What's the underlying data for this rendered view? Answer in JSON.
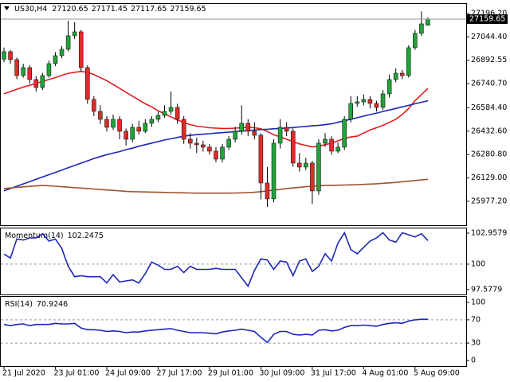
{
  "chart_data": [
    {
      "type": "candlestick",
      "symbol": "US30,H4",
      "categories": [
        "21 Jul 2020",
        null,
        null,
        null,
        null,
        null,
        null,
        null,
        "23 Jul 01:00",
        null,
        null,
        null,
        null,
        null,
        null,
        null,
        "24 Jul 09:00",
        null,
        null,
        null,
        null,
        null,
        null,
        null,
        "27 Jul 17:00",
        null,
        null,
        null,
        null,
        null,
        null,
        null,
        "29 Jul 01:00",
        null,
        null,
        null,
        null,
        null,
        null,
        null,
        "30 Jul 09:00",
        null,
        null,
        null,
        null,
        null,
        null,
        null,
        "31 Jul 17:00",
        null,
        null,
        null,
        null,
        null,
        null,
        null,
        "4 Aug 01:00",
        null,
        null,
        null,
        null,
        null,
        null,
        null,
        "5 Aug 09:00",
        null,
        null
      ],
      "open": [
        26900.0,
        26948.3,
        26896.6,
        26793.3,
        26845.0,
        26767.5,
        26715.9,
        26793.3,
        26870.8,
        26922.5,
        26963.8,
        27051.6,
        27077.4,
        26845.0,
        26638.4,
        26560.9,
        26509.3,
        26457.6,
        26509.3,
        26431.8,
        26380.1,
        26457.6,
        26431.8,
        26483.4,
        26509.3,
        26535.1,
        26560.9,
        26586.7,
        26509.3,
        26380.1,
        26354.3,
        26344.0,
        26328.5,
        26302.7,
        26251.0,
        26328.5,
        26380.1,
        26431.8,
        26483.4,
        26431.8,
        26406.0,
        26096.1,
        25992.8,
        26354.3,
        26457.6,
        26431.8,
        26225.2,
        26199.4,
        26225.2,
        26044.4,
        26354.3,
        26380.1,
        26302.7,
        26328.5,
        26509.3,
        26612.6,
        26622.9,
        26638.4,
        26612.6,
        26586.7,
        26674.5,
        26767.5,
        26808.8,
        26793.3,
        26974.1,
        27067.1,
        27120.65
      ],
      "high": [
        26975.0,
        26960.0,
        26910.0,
        26870.0,
        26860.0,
        26790.0,
        26810.0,
        26890.0,
        26945.0,
        26985.0,
        27150.0,
        27140.0,
        27090.0,
        26860.0,
        26660.0,
        26600.0,
        26530.0,
        26540.0,
        26530.0,
        26450.0,
        26480.0,
        26500.0,
        26510.0,
        26530.0,
        26560.0,
        26600.0,
        26690.0,
        26610.0,
        26530.0,
        26420.0,
        26390.0,
        26370.0,
        26350.0,
        26330.0,
        26350.0,
        26400.0,
        26460.0,
        26600.0,
        26510.0,
        26490.0,
        26420.0,
        26200.0,
        26380.0,
        26510.0,
        26490.0,
        26450.0,
        26290.0,
        26260.0,
        26240.0,
        26380.0,
        26420.0,
        26400.0,
        26360.0,
        26530.0,
        26660.0,
        26660.0,
        26670.0,
        26660.0,
        26630.0,
        26700.0,
        26800.0,
        26840.0,
        26830.0,
        26990.0,
        27090.0,
        27210.0,
        27171.45
      ],
      "low": [
        26880.0,
        26870.0,
        26770.0,
        26780.0,
        26740.0,
        26690.0,
        26700.0,
        26780.0,
        26855.0,
        26905.0,
        26950.0,
        27030.0,
        26820.0,
        26610.0,
        26530.0,
        26480.0,
        26430.0,
        26440.0,
        26380.0,
        26340.0,
        26360.0,
        26410.0,
        26420.0,
        26460.0,
        26490.0,
        26520.0,
        26540.0,
        26480.0,
        26350.0,
        26320.0,
        26290.0,
        26300.0,
        26280.0,
        26230.0,
        26230.0,
        26310.0,
        26360.0,
        26410.0,
        26400.0,
        26380.0,
        25990.0,
        25940.0,
        25970.0,
        26320.0,
        26400.0,
        26200.0,
        26170.0,
        26180.0,
        25960.0,
        26020.0,
        26330.0,
        26280.0,
        26290.0,
        26310.0,
        26490.0,
        26590.0,
        26600.0,
        26580.0,
        26560.0,
        26570.0,
        26650.0,
        26750.0,
        26770.0,
        26780.0,
        26960.0,
        27050.0,
        27117.65
      ],
      "close": [
        26948.3,
        26896.6,
        26793.3,
        26845.0,
        26767.5,
        26715.9,
        26793.3,
        26870.8,
        26922.5,
        26963.8,
        27051.6,
        27077.4,
        26845.0,
        26638.4,
        26560.9,
        26509.3,
        26457.6,
        26509.3,
        26431.8,
        26380.1,
        26457.6,
        26431.8,
        26483.4,
        26509.3,
        26535.1,
        26560.9,
        26586.7,
        26509.3,
        26380.1,
        26354.3,
        26344.0,
        26328.5,
        26302.7,
        26251.0,
        26328.5,
        26380.1,
        26431.8,
        26483.4,
        26431.8,
        26406.0,
        26096.1,
        25992.8,
        26354.3,
        26457.6,
        26431.8,
        26225.2,
        26199.4,
        26225.2,
        26044.4,
        26354.3,
        26380.1,
        26302.7,
        26328.5,
        26509.3,
        26612.6,
        26622.9,
        26638.4,
        26612.6,
        26586.7,
        26674.5,
        26767.5,
        26808.8,
        26793.3,
        26974.1,
        27067.1,
        27129.1,
        27159.65
      ],
      "colors": {
        "up": "#22a33a",
        "down": "#e02b2b",
        "wick": "#000000",
        "bid_line": "#9a9a9a"
      },
      "lines": [
        {
          "color": "#e01e1e",
          "values": [
            26675,
            26690,
            26705,
            26718,
            26730,
            26742,
            26755,
            26768,
            26780,
            26795,
            26808,
            26815,
            26820,
            26815,
            26800,
            26780,
            26760,
            26735,
            26710,
            26685,
            26660,
            26635,
            26610,
            26590,
            26565,
            26545,
            26525,
            26505,
            26490,
            26475,
            26465,
            26460,
            26455,
            26452,
            26450,
            26450,
            26452,
            26455,
            26458,
            26455,
            26448,
            26430,
            26410,
            26395,
            26380,
            26365,
            26350,
            26340,
            26330,
            26335,
            26345,
            26355,
            26370,
            26385,
            26395,
            26400,
            26420,
            26440,
            26455,
            26470,
            26490,
            26510,
            26540,
            26580,
            26630,
            26670,
            26710
          ]
        },
        {
          "color": "#1c27b8",
          "values": [
            26045,
            26060,
            26075,
            26090,
            26105,
            26120,
            26135,
            26150,
            26165,
            26180,
            26195,
            26210,
            26225,
            26240,
            26255,
            26268,
            26280,
            26290,
            26300,
            26312,
            26322,
            26335,
            26345,
            26355,
            26365,
            26375,
            26383,
            26392,
            26400,
            26405,
            26410,
            26413,
            26416,
            26420,
            26423,
            26426,
            26430,
            26433,
            26436,
            26440,
            26443,
            26445,
            26448,
            26450,
            26453,
            26456,
            26460,
            26463,
            26467,
            26470,
            26475,
            26480,
            26490,
            26500,
            26510,
            26520,
            26530,
            26540,
            26550,
            26560,
            26570,
            26580,
            26590,
            26600,
            26610,
            26620,
            26630
          ]
        },
        {
          "color": "#a0522d",
          "values": [
            26060,
            26064,
            26068,
            26071,
            26074,
            26077,
            26080,
            26078,
            26075,
            26072,
            26069,
            26066,
            26063,
            26060,
            26057,
            26054,
            26051,
            26048,
            26045,
            26042,
            26040,
            26039,
            26038,
            26037,
            26036,
            26035,
            26034,
            26033,
            26032,
            26031,
            26030,
            26030,
            26030,
            26030,
            26030,
            26030,
            26031,
            26032,
            26034,
            26036,
            26040,
            26045,
            26050,
            26055,
            26060,
            26064,
            26068,
            26072,
            26075,
            26078,
            26080,
            26081,
            26082,
            26083,
            26084,
            26085,
            26087,
            26089,
            26091,
            26094,
            26097,
            26100,
            26104,
            26108,
            26112,
            26116,
            26120
          ]
        }
      ],
      "ylim": [
        25822,
        27258
      ],
      "yticks": [
        {
          "value": 27196.2,
          "label": "27196.20"
        },
        {
          "value": 27044.4,
          "label": "27044.40"
        },
        26892.55,
        {
          "value": 26740.7,
          "label": "26740.70"
        },
        {
          "value": 26584.4,
          "label": "26584.40"
        },
        {
          "value": 26432.6,
          "label": "26432.60"
        },
        {
          "value": 26280.8,
          "label": "26280.80"
        },
        {
          "value": 26129.0,
          "label": "26129.00"
        },
        {
          "value": 25977.2,
          "label": "25977.20"
        }
      ]
    },
    {
      "type": "line",
      "title": "Momentum(14)",
      "color": "#1c27b8",
      "values": [
        100.96,
        100.59,
        102.4,
        102.3,
        102.5,
        102.5,
        102.9,
        102.2,
        102.4,
        101.5,
        99.8,
        98.8,
        98.9,
        98.8,
        98.8,
        98.8,
        98.2,
        99.0,
        98.3,
        98.4,
        98.5,
        98.2,
        99.1,
        100.2,
        99.9,
        99.5,
        99.5,
        99.8,
        99.2,
        99.8,
        99.5,
        99.5,
        99.5,
        99.6,
        99.5,
        99.5,
        99.5,
        98.7,
        97.9,
        99.4,
        100.5,
        100.4,
        99.5,
        100.3,
        100.2,
        98.9,
        100.3,
        100.5,
        99.3,
        99.8,
        101.0,
        100.3,
        102.0,
        103.0,
        101.4,
        101.0,
        101.6,
        102.2,
        102.5,
        103.0,
        102.3,
        102.1,
        103.0,
        102.8,
        102.6,
        102.9,
        102.2475
      ],
      "ylim": [
        97.11,
        103.41
      ],
      "yticks": [
        102.9579,
        100,
        97.5779
      ],
      "levels": [
        100
      ]
    },
    {
      "type": "line",
      "title": "RSI(14)",
      "color": "#1c27b8",
      "values": [
        62,
        60,
        62,
        63,
        60,
        62,
        62,
        62,
        64,
        63,
        63,
        64,
        56,
        53,
        53,
        52,
        50,
        51,
        50,
        48,
        49,
        49,
        51,
        52,
        53,
        54,
        55,
        52,
        50,
        48,
        48,
        48,
        47,
        46,
        49,
        51,
        52,
        54,
        52,
        50,
        40,
        31,
        45,
        50,
        50,
        45,
        44,
        45,
        44,
        52,
        53,
        51,
        52,
        57,
        60,
        60,
        61,
        60,
        59,
        62,
        64,
        65,
        64,
        68,
        70,
        71,
        70.9246
      ],
      "ylim": [
        -9.6,
        109.6
      ],
      "yticks": [
        100,
        70,
        30,
        0
      ],
      "levels": [
        70,
        30
      ]
    }
  ]
}
